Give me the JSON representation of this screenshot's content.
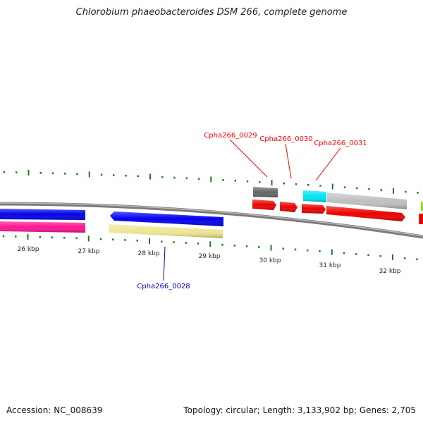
{
  "title": "Chlorobium phaeobacteroides DSM 266, complete genome",
  "accession": "Accession: NC_008639",
  "summary": "Topology: circular; Length: 3,133,902 bp; Genes: 2,705",
  "scale_labels": [
    "26 kbp",
    "27 kbp",
    "28 kbp",
    "29 kbp",
    "30 kbp",
    "31 kbp",
    "32 kbp"
  ],
  "gene_labels": {
    "g0028": "Cpha266_0028",
    "g0029": "Cpha266_0029",
    "g0030": "Cpha266_0030",
    "g0031": "Cpha266_0031"
  },
  "colors": {
    "tick": "#1a7a1a",
    "backbone": "#808080",
    "highlight": "#ff0000",
    "label_blue": "#0000cc"
  }
}
